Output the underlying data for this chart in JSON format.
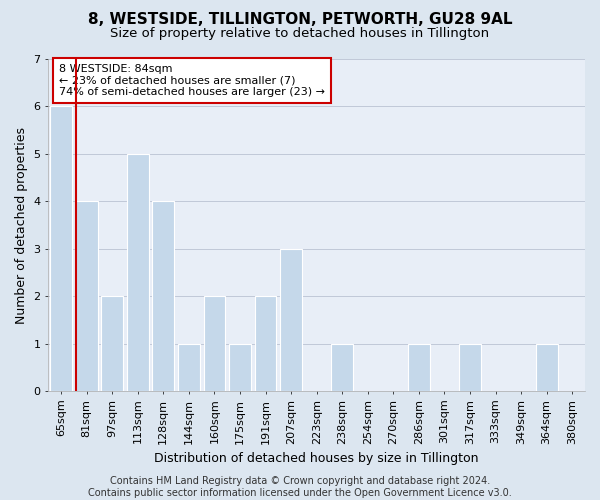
{
  "title": "8, WESTSIDE, TILLINGTON, PETWORTH, GU28 9AL",
  "subtitle": "Size of property relative to detached houses in Tillington",
  "xlabel": "Distribution of detached houses by size in Tillington",
  "ylabel": "Number of detached properties",
  "categories": [
    "65sqm",
    "81sqm",
    "97sqm",
    "113sqm",
    "128sqm",
    "144sqm",
    "160sqm",
    "175sqm",
    "191sqm",
    "207sqm",
    "223sqm",
    "238sqm",
    "254sqm",
    "270sqm",
    "286sqm",
    "301sqm",
    "317sqm",
    "333sqm",
    "349sqm",
    "364sqm",
    "380sqm"
  ],
  "values": [
    6,
    4,
    2,
    5,
    4,
    1,
    2,
    1,
    2,
    3,
    0,
    1,
    0,
    0,
    1,
    0,
    1,
    0,
    0,
    1,
    0
  ],
  "bar_color": "#c5d8ea",
  "property_line_x": 1,
  "annotation_text": "8 WESTSIDE: 84sqm\n← 23% of detached houses are smaller (7)\n74% of semi-detached houses are larger (23) →",
  "annotation_box_color": "#ffffff",
  "annotation_border_color": "#cc0000",
  "ylim": [
    0,
    7
  ],
  "yticks": [
    0,
    1,
    2,
    3,
    4,
    5,
    6,
    7
  ],
  "footer": "Contains HM Land Registry data © Crown copyright and database right 2024.\nContains public sector information licensed under the Open Government Licence v3.0.",
  "background_color": "#dce6f0",
  "plot_bg_color": "#e8eef7",
  "grid_color": "#c0c8d8",
  "title_fontsize": 11,
  "subtitle_fontsize": 9.5,
  "tick_fontsize": 8,
  "ylabel_fontsize": 9,
  "xlabel_fontsize": 9,
  "footer_fontsize": 7
}
